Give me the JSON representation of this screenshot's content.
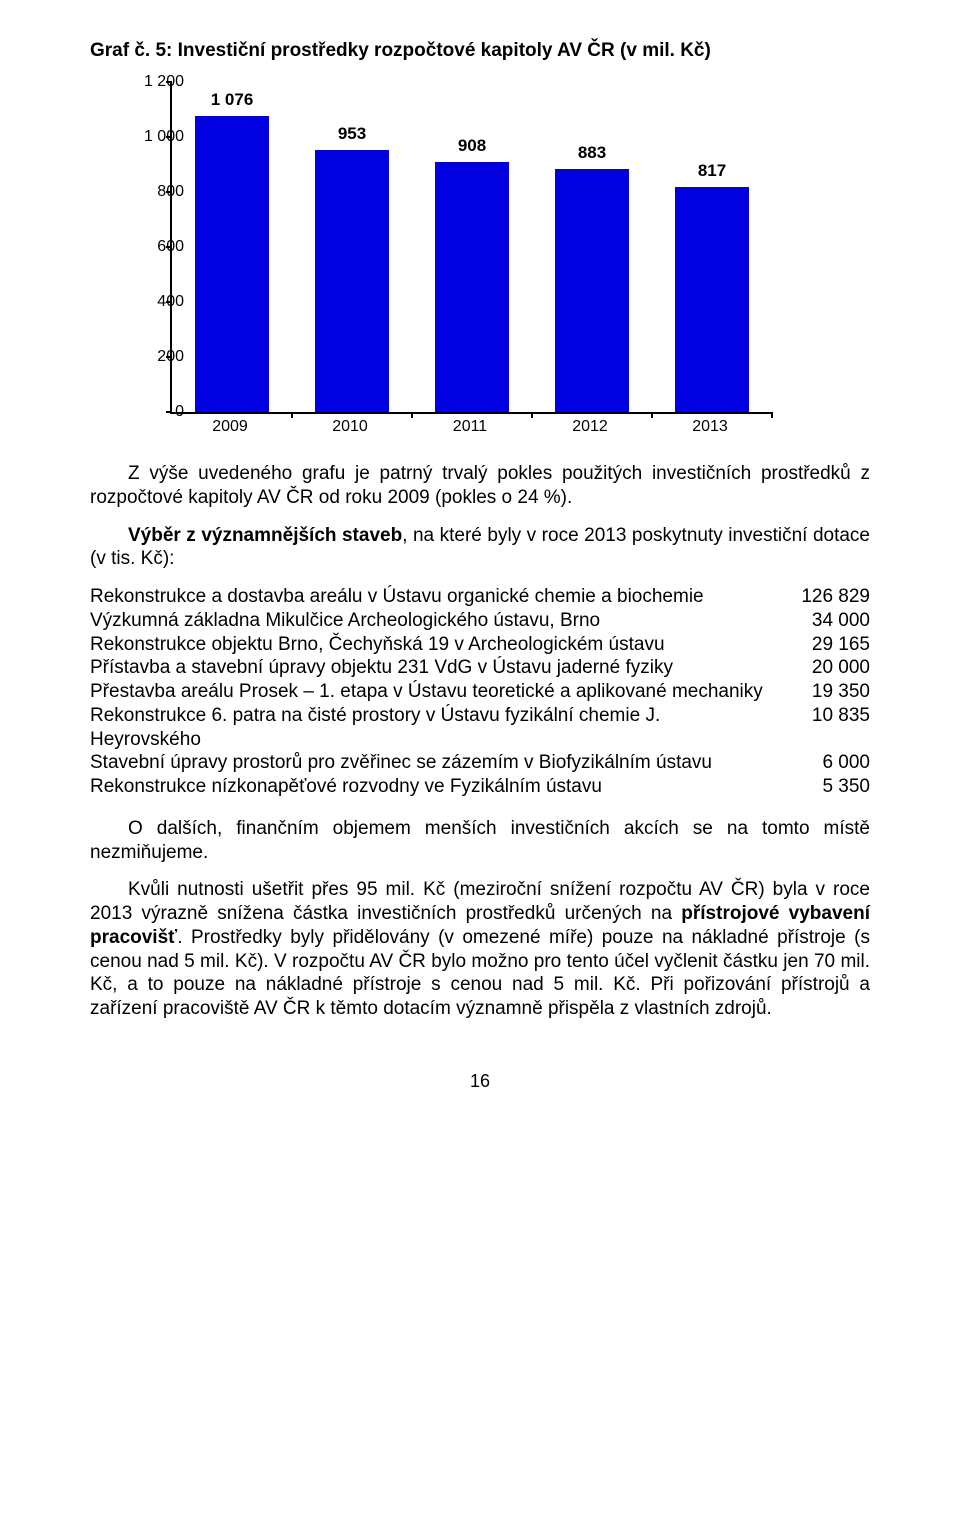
{
  "title": "Graf č. 5: Investiční prostředky rozpočtové kapitoly AV ČR (v mil. Kč)",
  "chart": {
    "type": "bar",
    "categories": [
      "2009",
      "2010",
      "2011",
      "2012",
      "2013"
    ],
    "values": [
      1076,
      953,
      908,
      883,
      817
    ],
    "value_labels": [
      "1 076",
      "953",
      "908",
      "883",
      "817"
    ],
    "bar_color": "#0000e0",
    "ylim": [
      0,
      1200
    ],
    "yticks": [
      0,
      200,
      400,
      600,
      800,
      1000,
      1200
    ],
    "ytick_labels": [
      "0",
      "200",
      "400",
      "600",
      "800",
      "1 000",
      "1 200"
    ],
    "bar_width_ratio": 0.62,
    "background_color": "#ffffff",
    "axis_color": "#000000",
    "label_fontsize": 16,
    "value_label_fontsize": 17,
    "value_label_fontweight": "bold"
  },
  "para1": "Z výše uvedeného grafu je patrný trvalý pokles použitých investičních prostředků z rozpočtové kapitoly AV ČR od roku 2009 (pokles o 24 %).",
  "para2_lead_bold": "Výběr z významnějších staveb",
  "para2_rest": ", na které byly v roce 2013 poskytnuty investiční dotace (v tis. Kč):",
  "rows": [
    {
      "desc": "Rekonstrukce a dostavba areálu v Ústavu organické chemie a biochemie",
      "val": "126 829"
    },
    {
      "desc": "Výzkumná základna Mikulčice Archeologického ústavu, Brno",
      "val": "34 000"
    },
    {
      "desc": "Rekonstrukce objektu Brno, Čechyňská 19 v Archeologickém ústavu",
      "val": "29 165"
    },
    {
      "desc": "Přístavba a stavební úpravy objektu 231 VdG v Ústavu jaderné fyziky",
      "val": "20 000"
    },
    {
      "desc": "Přestavba areálu Prosek – 1. etapa v Ústavu teoretické a aplikované mechaniky",
      "val": "19 350"
    },
    {
      "desc": "Rekonstrukce 6. patra na čisté prostory v Ústavu fyzikální chemie J. Heyrovského",
      "val": "10 835"
    },
    {
      "desc": "Stavební úpravy prostorů pro zvěřinec se zázemím v Biofyzikálním ústavu",
      "val": "6 000"
    },
    {
      "desc": "Rekonstrukce nízkonapěťové rozvodny ve Fyzikálním ústavu",
      "val": "5 350"
    }
  ],
  "para3": "O dalších, finančním objemem menších investičních akcích se na tomto místě nezmiňujeme.",
  "para4_a": "Kvůli nutnosti ušetřit přes 95 mil. Kč (meziroční snížení rozpočtu AV ČR) byla v roce 2013 výrazně snížena částka investičních prostředků určených na ",
  "para4_bold": "přístrojové vybavení pracovišť",
  "para4_b": ". Prostředky byly přidělovány (v omezené míře) pouze na nákladné přístroje (s cenou nad 5 mil. Kč). V rozpočtu AV ČR bylo možno pro tento účel vyčlenit částku jen 70 mil. Kč, a to pouze na nákladné přístroje s cenou nad 5 mil. Kč. Při pořizování přístrojů a zařízení pracoviště AV ČR k těmto dotacím významně přispěla z vlastních zdrojů.",
  "page_number": "16"
}
